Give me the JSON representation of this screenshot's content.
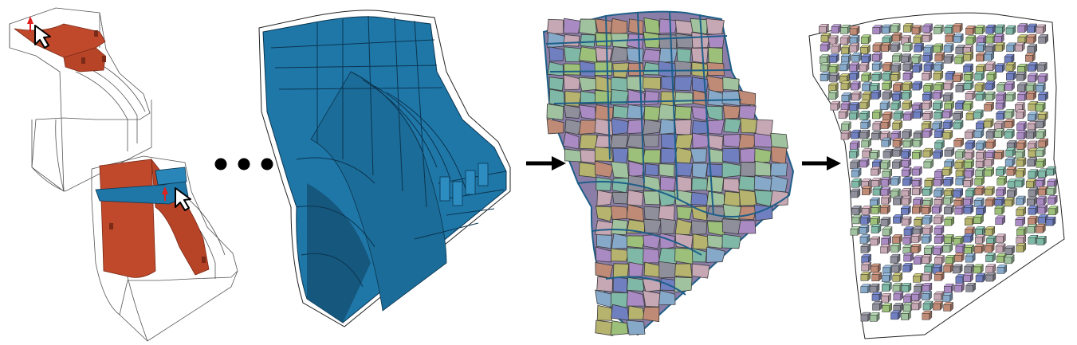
{
  "colors": {
    "background": "#ffffff",
    "red_surface": "#c0492b",
    "blue_surface": "#1f77a8",
    "blue_dark": "#16577d",
    "cube_palette": [
      "#6f7fc0",
      "#a98ac2",
      "#c08b76",
      "#7fb8a6",
      "#9cc07a",
      "#c6a7b4",
      "#87a9c9",
      "#b6b36e",
      "#8f8f9c",
      "#a0c29e"
    ]
  },
  "panels": [
    {
      "name": "interactive-red-sheets",
      "icon": "cursor-icon"
    },
    {
      "name": "interactive-blue-sheet",
      "icon": "cursor-icon"
    },
    {
      "name": "blue-segmentation"
    },
    {
      "name": "colored-hex-patches"
    },
    {
      "name": "exploded-hex-mesh"
    }
  ],
  "connectors": [
    "ellipsis",
    "arrow-right",
    "arrow-right"
  ]
}
